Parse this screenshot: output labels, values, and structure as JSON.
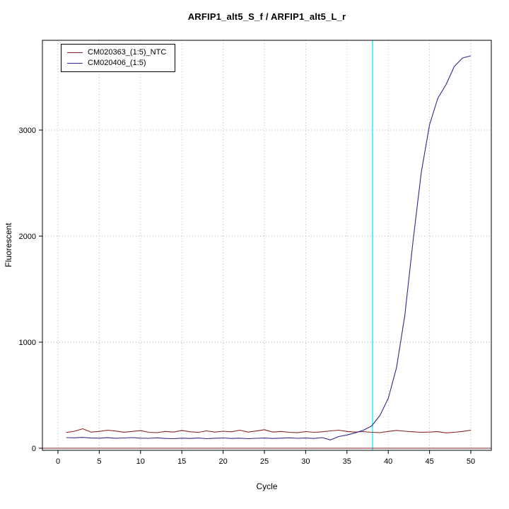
{
  "chart_data": {
    "type": "line",
    "title": "ARFIP1_alt5_S_f / ARFIP1_alt5_L_r",
    "xlabel": "Cycle",
    "ylabel": "Fluorescent",
    "xlim": [
      0,
      50
    ],
    "ylim": [
      0,
      3847
    ],
    "x_ticks": [
      0,
      5,
      10,
      15,
      20,
      25,
      30,
      35,
      40,
      45,
      50
    ],
    "y_ticks": [
      0,
      1000,
      2000,
      3000
    ],
    "grid": true,
    "grid_color": "#b5b5b5",
    "legend_position": "top-left",
    "x": [
      1,
      2,
      3,
      4,
      5,
      6,
      7,
      8,
      9,
      10,
      11,
      12,
      13,
      14,
      15,
      16,
      17,
      18,
      19,
      20,
      21,
      22,
      23,
      24,
      25,
      26,
      27,
      28,
      29,
      30,
      31,
      32,
      33,
      34,
      35,
      36,
      37,
      38,
      39,
      40,
      41,
      42,
      43,
      44,
      45,
      46,
      47,
      48,
      49,
      50
    ],
    "series": [
      {
        "name": "CM020363_(1:5)_NTC",
        "color": "#8b2323",
        "values": [
          148,
          160,
          183,
          152,
          158,
          170,
          162,
          151,
          158,
          166,
          150,
          147,
          158,
          152,
          168,
          155,
          150,
          163,
          152,
          160,
          155,
          170,
          152,
          162,
          175,
          152,
          158,
          150,
          146,
          157,
          150,
          155,
          163,
          170,
          158,
          152,
          157,
          150,
          147,
          158,
          168,
          160,
          155,
          150,
          152,
          156,
          145,
          150,
          158,
          170
        ]
      },
      {
        "name": "CM020406_(1:5)",
        "color": "#2b2b8c",
        "values": [
          100,
          98,
          102,
          96,
          95,
          99,
          94,
          97,
          100,
          95,
          93,
          98,
          92,
          90,
          95,
          92,
          96,
          90,
          94,
          97,
          92,
          95,
          90,
          93,
          96,
          92,
          95,
          98,
          93,
          96,
          92,
          100,
          78,
          110,
          125,
          145,
          170,
          210,
          310,
          470,
          760,
          1250,
          1950,
          2600,
          3050,
          3300,
          3430,
          3600,
          3680,
          3700
        ]
      }
    ],
    "threshold_line": {
      "value": 0,
      "color": "#8b2323"
    },
    "ct_marker": {
      "cycle": 38.1,
      "color": "#00e5ee"
    }
  }
}
